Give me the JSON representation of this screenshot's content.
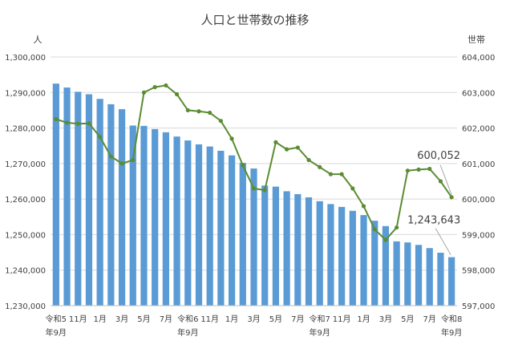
{
  "chart_data": {
    "type": "bar+line",
    "title": "人口と世帯数の推移",
    "left_axis": {
      "unit_label": "人",
      "min": 1230000,
      "max": 1300000,
      "step": 10000
    },
    "right_axis": {
      "unit_label": "世帯",
      "min": 597000,
      "max": 604000,
      "step": 1000
    },
    "x_tick_labels": [
      {
        "line1": "令和5",
        "line2": "年9月",
        "index": 0
      },
      {
        "line1": "11月",
        "line2": "",
        "index": 2
      },
      {
        "line1": "1月",
        "line2": "",
        "index": 4
      },
      {
        "line1": "3月",
        "line2": "",
        "index": 6
      },
      {
        "line1": "5月",
        "line2": "",
        "index": 8
      },
      {
        "line1": "7月",
        "line2": "",
        "index": 10
      },
      {
        "line1": "令和6",
        "line2": "年9月",
        "index": 12
      },
      {
        "line1": "11月",
        "line2": "",
        "index": 14
      },
      {
        "line1": "1月",
        "line2": "",
        "index": 16
      },
      {
        "line1": "3月",
        "line2": "",
        "index": 18
      },
      {
        "line1": "5月",
        "line2": "",
        "index": 20
      },
      {
        "line1": "7月",
        "line2": "",
        "index": 22
      },
      {
        "line1": "令和7",
        "line2": "年9月",
        "index": 24
      },
      {
        "line1": "11月",
        "line2": "",
        "index": 26
      },
      {
        "line1": "1月",
        "line2": "",
        "index": 28
      },
      {
        "line1": "3月",
        "line2": "",
        "index": 30
      },
      {
        "line1": "5月",
        "line2": "",
        "index": 32
      },
      {
        "line1": "7月",
        "line2": "",
        "index": 34
      },
      {
        "line1": "令和8",
        "line2": "年9月",
        "index": 36
      }
    ],
    "series": [
      {
        "kind": "bar",
        "axis": "left",
        "color": "#5b9bd5",
        "values": [
          1292500,
          1291400,
          1290200,
          1289500,
          1288200,
          1286700,
          1285300,
          1280700,
          1280600,
          1279700,
          1278800,
          1277600,
          1276500,
          1275400,
          1274800,
          1273600,
          1272300,
          1270200,
          1268600,
          1263800,
          1263500,
          1262200,
          1261400,
          1260500,
          1259400,
          1258600,
          1257800,
          1256700,
          1255500,
          1253900,
          1252400,
          1248100,
          1247800,
          1247100,
          1246200,
          1244900,
          1243643
        ]
      },
      {
        "kind": "line",
        "axis": "right",
        "color": "#5b8c32",
        "values": [
          602250,
          602150,
          602120,
          602130,
          601750,
          601200,
          601000,
          601100,
          603000,
          603150,
          603200,
          602950,
          602500,
          602470,
          602430,
          602200,
          601700,
          600950,
          600300,
          600250,
          601600,
          601400,
          601450,
          601100,
          600900,
          600700,
          600700,
          600300,
          599800,
          599150,
          598850,
          599200,
          600800,
          600830,
          600850,
          600500,
          600052
        ]
      }
    ],
    "annotations": [
      {
        "text": "600,052",
        "series": 1,
        "index": 36
      },
      {
        "text": "1,243,643",
        "series": 0,
        "index": 36
      }
    ],
    "grid": true,
    "legend": "none"
  }
}
